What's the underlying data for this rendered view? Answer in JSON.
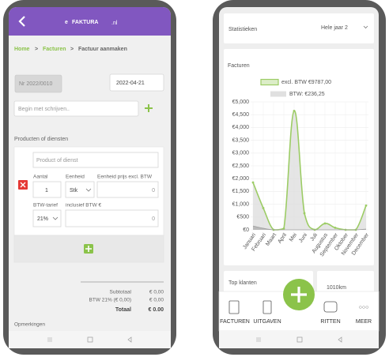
{
  "invoice_screen": {
    "logo": {
      "mark": "e",
      "name": "FAKTURA",
      "suffix": ".nl"
    },
    "breadcrumb": {
      "items": [
        "Home",
        "Facturen",
        "Factuur aanmaken"
      ],
      "separator": ">"
    },
    "invoice_number": "Nr 2022/0010",
    "date": "2022-04-21",
    "customer_placeholder": "Begin met schrijven..",
    "products_label": "Producten of diensten",
    "product_placeholder": "Product of dienst",
    "fields": {
      "quantity": "Aantal",
      "unit": "Eenheid",
      "unit_price": "Eenheid prijs excl. BTW",
      "vat_rate": "BTW-tarief",
      "incl_vat": "inclusief BTW €"
    },
    "inputs": {
      "quantity": "1",
      "unit": "Stk",
      "unit_price": "0",
      "vat_rate": "21%",
      "incl_vat": "0"
    },
    "totals": {
      "subtotal": {
        "label": "Subtotaal",
        "value": "€ 0,00"
      },
      "vat": {
        "label": "BTW 21% (€ 0,00)",
        "value": "€ 0,00"
      },
      "total": {
        "label": "Totaal",
        "value": "€ 0.00"
      }
    },
    "remarks": "Opmerkingen"
  },
  "stats_screen": {
    "title": "Statistieken",
    "period": "Hele jaar 2",
    "chart": {
      "type": "line",
      "title": "Facturen",
      "categories": [
        "Januari",
        "Februari",
        "Maart",
        "April",
        "Mei",
        "Juni",
        "Juli",
        "Augustus",
        "September",
        "Oktober",
        "November",
        "December"
      ],
      "series": [
        {
          "name": "excl. BTW €9787,00",
          "color": "#9ccc65",
          "values": [
            1850,
            850,
            0,
            50,
            4650,
            650,
            0,
            250,
            80,
            0,
            0,
            950
          ]
        },
        {
          "name": "BTW: €236,25",
          "color": "#9e9e9e",
          "values": [
            150,
            60,
            0,
            0,
            0,
            0,
            0,
            0,
            0,
            0,
            0,
            30
          ]
        }
      ],
      "ylim": [
        0,
        5000
      ],
      "yticks": [
        {
          "value": 0,
          "label": "€0"
        },
        {
          "value": 500,
          "label": "€500"
        },
        {
          "value": 1000,
          "label": "€1,000"
        },
        {
          "value": 1500,
          "label": "€1,500"
        },
        {
          "value": 2000,
          "label": "€2,000"
        },
        {
          "value": 2500,
          "label": "€2,500"
        },
        {
          "value": 3000,
          "label": "€3,000"
        },
        {
          "value": 3500,
          "label": "€3,500"
        },
        {
          "value": 4000,
          "label": "€4,000"
        },
        {
          "value": 4500,
          "label": "€4,500"
        },
        {
          "value": 5000,
          "label": "€5,000"
        }
      ],
      "grid": true
    },
    "top_customers": "Top klanten",
    "distance": "1010km",
    "nav": [
      "FACTUREN",
      "UITGAVEN",
      "RITTEN",
      "MEER"
    ]
  }
}
